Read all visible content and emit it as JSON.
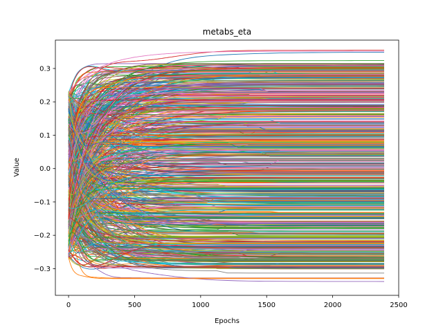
{
  "chart_data": {
    "type": "line",
    "title": "metabs_eta",
    "xlabel": "Epochs",
    "ylabel": "Value",
    "xlim": [
      -100,
      2500
    ],
    "ylim": [
      -0.38,
      0.385
    ],
    "x_ticks": [
      0,
      500,
      1000,
      1500,
      2000,
      2500
    ],
    "y_ticks": [
      -0.3,
      -0.2,
      -0.1,
      0.0,
      0.1,
      0.2,
      0.3
    ],
    "x_tick_labels": [
      "0",
      "500",
      "1000",
      "1500",
      "2000",
      "2500"
    ],
    "y_tick_labels": [
      "−0.3",
      "−0.2",
      "−0.1",
      "0.0",
      "0.1",
      "0.2",
      "0.3"
    ],
    "grid": false,
    "legend": "none",
    "epochs": [
      0,
      2390
    ],
    "series_count": 700,
    "palette": [
      "#1f77b4",
      "#ff7f0e",
      "#2ca02c",
      "#d62728",
      "#9467bd",
      "#8c564b",
      "#e377c2",
      "#7f7f7f",
      "#bcbd22",
      "#17becf"
    ],
    "final_value_range": [
      -0.345,
      0.355
    ],
    "initial_value_range": [
      -0.27,
      0.23
    ]
  }
}
